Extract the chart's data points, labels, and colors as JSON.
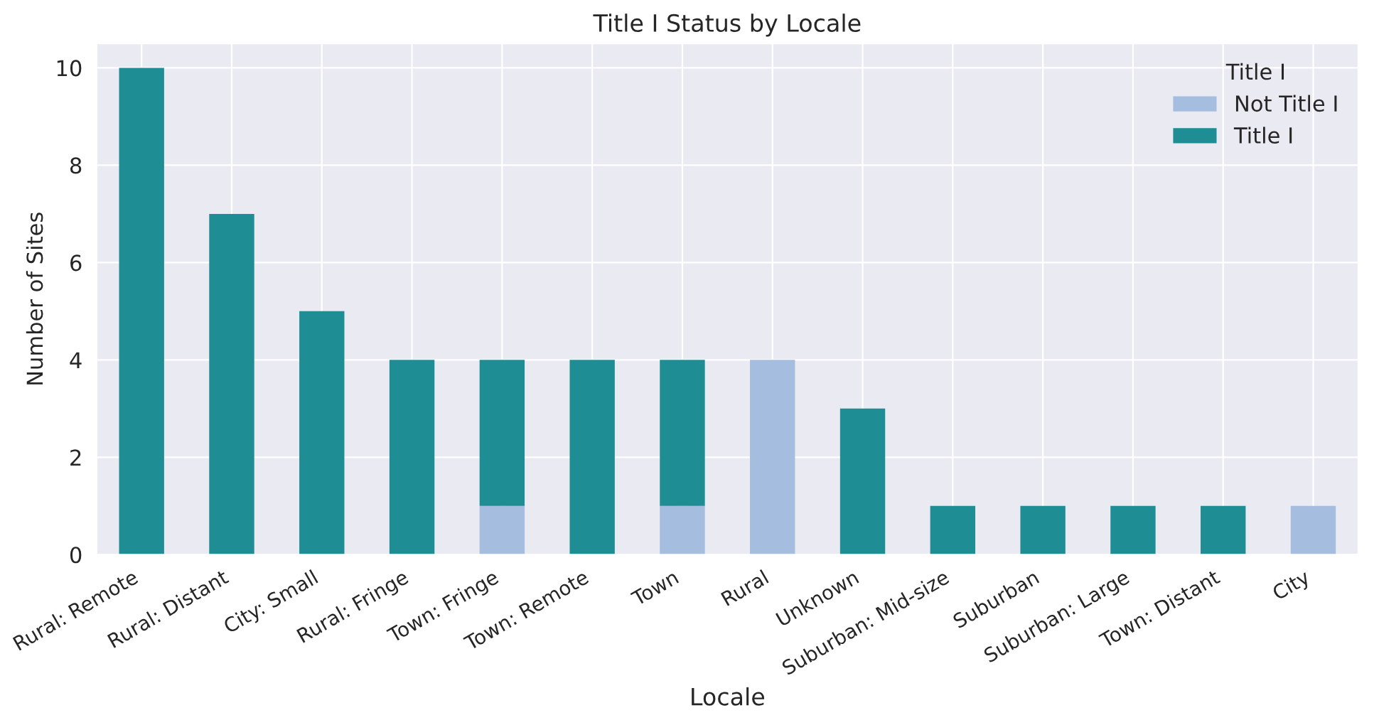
{
  "chart_data": {
    "type": "bar",
    "title": "Title I Status by Locale",
    "xlabel": "Locale",
    "ylabel": "Number of Sites",
    "categories": [
      "Rural: Remote",
      "Rural: Distant",
      "City: Small",
      "Rural: Fringe",
      "Town: Fringe",
      "Town: Remote",
      "Town",
      "Rural",
      "Unknown",
      "Suburban: Mid-size",
      "Suburban",
      "Suburban: Large",
      "Town: Distant",
      "City"
    ],
    "series": [
      {
        "name": "Not Title I",
        "color": "#a5bddf",
        "values": [
          null,
          null,
          null,
          null,
          1,
          null,
          1,
          4,
          null,
          null,
          null,
          null,
          null,
          1
        ]
      },
      {
        "name": "Title I",
        "color": "#1f8e94",
        "values": [
          10,
          7,
          5,
          4,
          3,
          4,
          3,
          null,
          3,
          1,
          1,
          1,
          1,
          null
        ]
      }
    ],
    "stacked": true,
    "legend_title": "Title I",
    "legend": "top right",
    "grid": true,
    "ylim": [
      0,
      10.5
    ],
    "yticks": [
      0,
      2,
      4,
      6,
      8,
      10
    ]
  }
}
